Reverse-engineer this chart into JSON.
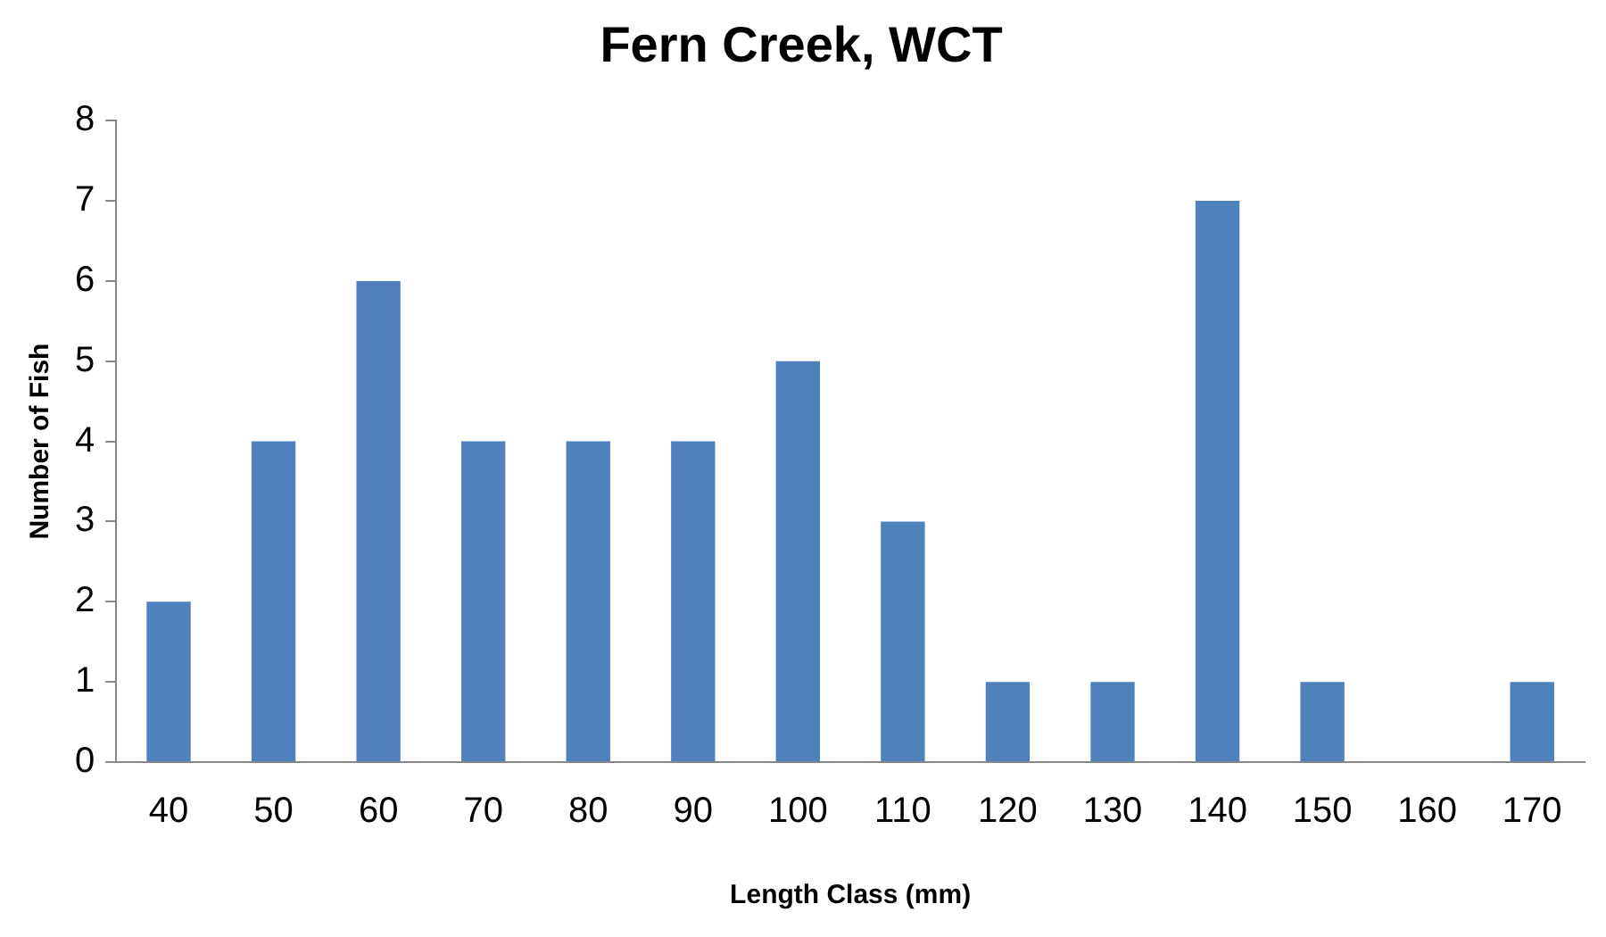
{
  "chart_data": {
    "type": "bar",
    "title": "Fern Creek, WCT",
    "xlabel": "Length Class (mm)",
    "ylabel": "Number of Fish",
    "categories": [
      "40",
      "50",
      "60",
      "70",
      "80",
      "90",
      "100",
      "110",
      "120",
      "130",
      "140",
      "150",
      "160",
      "170"
    ],
    "values": [
      2,
      4,
      6,
      4,
      4,
      4,
      5,
      3,
      1,
      1,
      7,
      1,
      0,
      1
    ],
    "color": "#4f81bd",
    "ylim": [
      0,
      8
    ],
    "yticks": [
      0,
      1,
      2,
      3,
      4,
      5,
      6,
      7,
      8
    ],
    "grid": false,
    "legend": false
  }
}
